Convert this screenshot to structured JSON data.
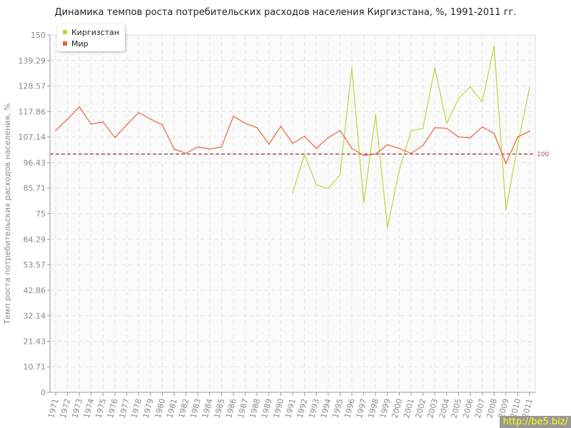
{
  "chart_data": {
    "type": "line",
    "title": "Динамика темпов роста потребительских расходов населения Киргизстана, %, 1991-2011 гг.",
    "xlabel": "",
    "ylabel": "Темп роста потребительских расходов населения, %",
    "ylim": [
      0,
      150
    ],
    "yticks": [
      "0",
      "10.71",
      "21.43",
      "32.14",
      "42.86",
      "53.57",
      "64.29",
      "75",
      "85.71",
      "96.43",
      "107.14",
      "117.86",
      "128.57",
      "139.29",
      "150"
    ],
    "x": [
      1971,
      1972,
      1973,
      1974,
      1975,
      1976,
      1977,
      1978,
      1979,
      1980,
      1981,
      1982,
      1983,
      1984,
      1985,
      1986,
      1987,
      1988,
      1989,
      1990,
      1991,
      1992,
      1993,
      1994,
      1995,
      1996,
      1997,
      1998,
      1999,
      2000,
      2001,
      2002,
      2003,
      2004,
      2005,
      2006,
      2007,
      2008,
      2009,
      2010,
      2011
    ],
    "grid": true,
    "legend_placement": "top-left",
    "reference_line": {
      "value": 100,
      "label": "100",
      "color": "#a05060"
    },
    "series": [
      {
        "name": "Киргизстан",
        "color": "#b8d83c",
        "values": [
          null,
          null,
          null,
          null,
          null,
          null,
          null,
          null,
          null,
          null,
          null,
          null,
          null,
          null,
          null,
          null,
          null,
          null,
          null,
          null,
          83.8,
          99.8,
          87.1,
          85.5,
          91.3,
          136.2,
          79.5,
          116.6,
          69.1,
          93.3,
          109.8,
          110.8,
          136.2,
          112.8,
          123.3,
          128.2,
          121.9,
          145.2,
          76.6,
          104,
          127.9
        ]
      },
      {
        "name": "Мир",
        "color": "#e8643c",
        "values": [
          109.9,
          114.7,
          119.8,
          112.6,
          113.5,
          106.9,
          112.3,
          117.4,
          114.7,
          112.3,
          102.1,
          100.3,
          103,
          102.1,
          103,
          115.9,
          112.9,
          111.1,
          104.2,
          111.7,
          104.5,
          107.5,
          102.4,
          106.9,
          109.9,
          102.4,
          99.4,
          100,
          103.9,
          102.4,
          100.3,
          103.6,
          111.1,
          110.8,
          107.2,
          106.9,
          111.4,
          108.7,
          96.1,
          107.2,
          109.6
        ]
      }
    ]
  },
  "watermark": "http://be5.biz/"
}
